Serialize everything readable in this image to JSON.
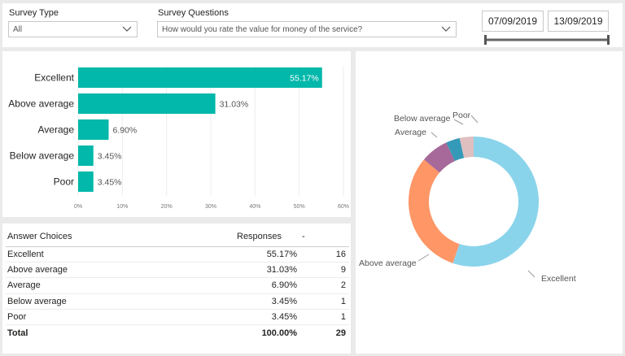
{
  "filters": {
    "survey_type": {
      "label": "Survey Type",
      "value": "All"
    },
    "survey_questions": {
      "label": "Survey Questions",
      "value": "How would you rate the value for money of the service?"
    },
    "date_start": "07/09/2019",
    "date_end": "13/09/2019"
  },
  "chart_data": [
    {
      "type": "bar",
      "orientation": "horizontal",
      "categories": [
        "Excellent",
        "Above average",
        "Average",
        "Below average",
        "Poor"
      ],
      "values": [
        55.17,
        31.03,
        6.9,
        3.45,
        3.45
      ],
      "value_labels": [
        "55.17%",
        "31.03%",
        "6.90%",
        "3.45%",
        "3.45%"
      ],
      "xlim": [
        0,
        60
      ],
      "xticks": [
        "0%",
        "10%",
        "20%",
        "30%",
        "40%",
        "50%",
        "60%"
      ],
      "color": "#01b8aa",
      "grid": true
    },
    {
      "type": "pie",
      "donut": true,
      "categories": [
        "Excellent",
        "Above average",
        "Average",
        "Below average",
        "Poor"
      ],
      "values": [
        55.17,
        31.03,
        6.9,
        3.45,
        3.45
      ],
      "colors": [
        "#8ad4eb",
        "#fe9666",
        "#a66999",
        "#3599b8",
        "#dfbfbf"
      ]
    }
  ],
  "table": {
    "headers": [
      "Answer Choices",
      "Responses",
      "-"
    ],
    "rows": [
      [
        "Excellent",
        "55.17%",
        "16"
      ],
      [
        "Above average",
        "31.03%",
        "9"
      ],
      [
        "Average",
        "6.90%",
        "2"
      ],
      [
        "Below average",
        "3.45%",
        "1"
      ],
      [
        "Poor",
        "3.45%",
        "1"
      ]
    ],
    "total": [
      "Total",
      "100.00%",
      "29"
    ]
  }
}
